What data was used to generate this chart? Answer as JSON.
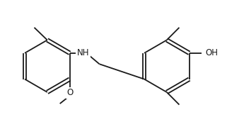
{
  "background_color": "#ffffff",
  "line_color": "#1a1a1a",
  "text_color": "#1a1a1a",
  "bond_lw": 1.3,
  "font_size": 8.5,
  "fig_width": 3.21,
  "fig_height": 1.79,
  "dpi": 100,
  "NH_label": "NH",
  "O_label": "O",
  "OH_label": "OH"
}
